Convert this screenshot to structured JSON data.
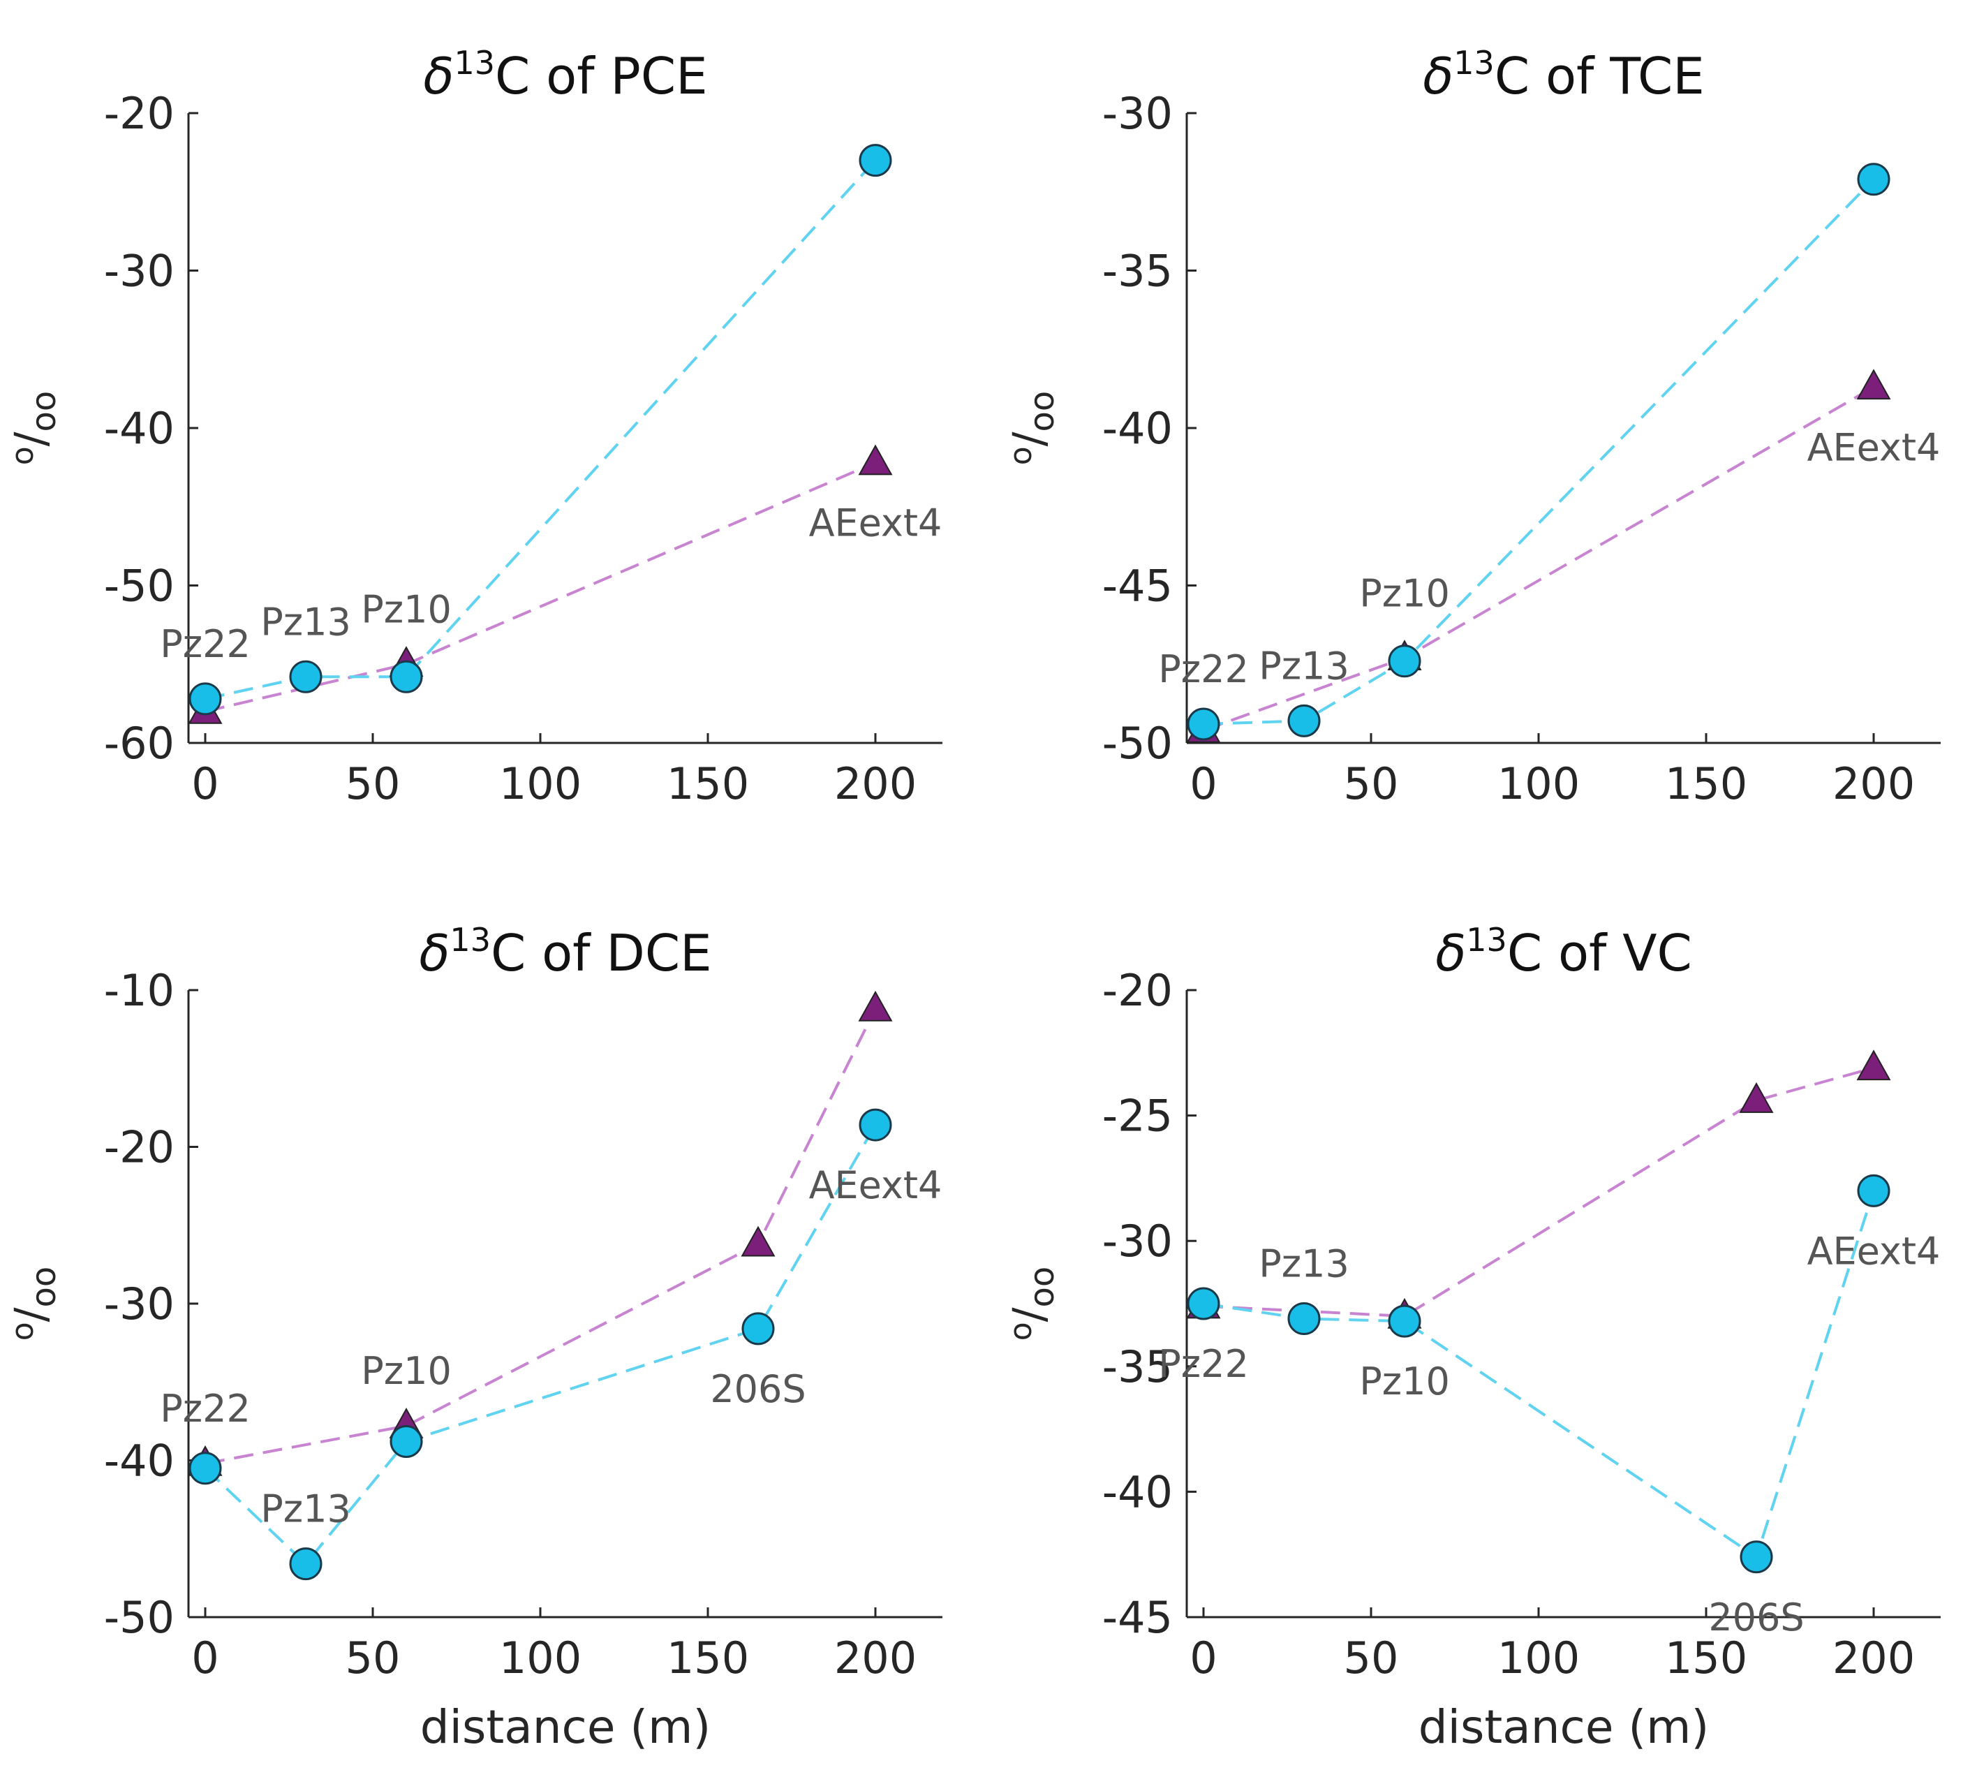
{
  "chart_data": [
    {
      "type": "line",
      "title_prefix": "δ",
      "title_sup": "13",
      "title_rest": "C of PCE",
      "ylabel_main": "o",
      "ylabel_sub": "oo",
      "xlabel": "",
      "xlim": [
        -5,
        220
      ],
      "ylim": [
        -60,
        -20
      ],
      "xticks": [
        0,
        50,
        100,
        150,
        200
      ],
      "yticks": [
        -60,
        -50,
        -40,
        -30,
        -20
      ],
      "series": [
        {
          "name": "triangle",
          "marker": "triangle",
          "color": "#7b1f7b",
          "line_color": "#c883d1",
          "x": [
            0,
            60,
            200
          ],
          "y": [
            -58,
            -55,
            -42.2
          ]
        },
        {
          "name": "circle",
          "marker": "circle",
          "color": "#18bde8",
          "line_color": "#5fd3f0",
          "x": [
            0,
            30,
            60,
            200
          ],
          "y": [
            -57.2,
            -55.8,
            -55.8,
            -23
          ]
        }
      ],
      "point_labels": [
        {
          "text": "Pz22",
          "x": 0,
          "y": -57.2,
          "pos": "above"
        },
        {
          "text": "Pz13",
          "x": 30,
          "y": -55.8,
          "pos": "above"
        },
        {
          "text": "Pz10",
          "x": 60,
          "y": -55.0,
          "pos": "above"
        },
        {
          "text": "AEext4",
          "x": 200,
          "y": -42.2,
          "pos": "below"
        }
      ]
    },
    {
      "type": "line",
      "title_prefix": "δ",
      "title_sup": "13",
      "title_rest": "C of TCE",
      "ylabel_main": "o",
      "ylabel_sub": "oo",
      "xlabel": "",
      "xlim": [
        -5,
        220
      ],
      "ylim": [
        -50,
        -30
      ],
      "xticks": [
        0,
        50,
        100,
        150,
        200
      ],
      "yticks": [
        -50,
        -45,
        -40,
        -35,
        -30
      ],
      "series": [
        {
          "name": "triangle",
          "marker": "triangle",
          "color": "#7b1f7b",
          "line_color": "#c883d1",
          "x": [
            0,
            60,
            200
          ],
          "y": [
            -49.6,
            -47.3,
            -38.7
          ]
        },
        {
          "name": "circle",
          "marker": "circle",
          "color": "#18bde8",
          "line_color": "#5fd3f0",
          "x": [
            0,
            30,
            60,
            200
          ],
          "y": [
            -49.4,
            -49.3,
            -47.4,
            -32.1
          ]
        }
      ],
      "point_labels": [
        {
          "text": "Pz22",
          "x": 0,
          "y": -49.4,
          "pos": "above"
        },
        {
          "text": "Pz13",
          "x": 30,
          "y": -49.3,
          "pos": "above"
        },
        {
          "text": "Pz10",
          "x": 60,
          "y": -47.0,
          "pos": "above"
        },
        {
          "text": "AEext4",
          "x": 200,
          "y": -38.7,
          "pos": "below"
        }
      ]
    },
    {
      "type": "line",
      "title_prefix": "δ",
      "title_sup": "13",
      "title_rest": "C of DCE",
      "ylabel_main": "o",
      "ylabel_sub": "oo",
      "xlabel": "distance (m)",
      "xlim": [
        -5,
        220
      ],
      "ylim": [
        -50,
        -10
      ],
      "xticks": [
        0,
        50,
        100,
        150,
        200
      ],
      "yticks": [
        -50,
        -40,
        -30,
        -20,
        -10
      ],
      "series": [
        {
          "name": "triangle",
          "marker": "triangle",
          "color": "#7b1f7b",
          "line_color": "#c883d1",
          "x": [
            0,
            60,
            165,
            200
          ],
          "y": [
            -40.2,
            -37.8,
            -26.2,
            -11.2
          ]
        },
        {
          "name": "circle",
          "marker": "circle",
          "color": "#18bde8",
          "line_color": "#5fd3f0",
          "x": [
            0,
            30,
            60,
            165,
            200
          ],
          "y": [
            -40.5,
            -46.6,
            -38.8,
            -31.6,
            -18.6
          ]
        }
      ],
      "point_labels": [
        {
          "text": "Pz22",
          "x": 0,
          "y": -40.2,
          "pos": "above"
        },
        {
          "text": "Pz13",
          "x": 30,
          "y": -46.6,
          "pos": "above"
        },
        {
          "text": "Pz10",
          "x": 60,
          "y": -37.8,
          "pos": "above"
        },
        {
          "text": "206S",
          "x": 165,
          "y": -31.6,
          "pos": "below"
        },
        {
          "text": "AEext4",
          "x": 200,
          "y": -18.6,
          "pos": "below"
        }
      ]
    },
    {
      "type": "line",
      "title_prefix": "δ",
      "title_sup": "13",
      "title_rest": "C of VC",
      "ylabel_main": "o",
      "ylabel_sub": "oo",
      "xlabel": "distance (m)",
      "xlim": [
        -5,
        220
      ],
      "ylim": [
        -45,
        -20
      ],
      "xticks": [
        0,
        50,
        100,
        150,
        200
      ],
      "yticks": [
        -45,
        -40,
        -35,
        -30,
        -25,
        -20
      ],
      "series": [
        {
          "name": "triangle",
          "marker": "triangle",
          "color": "#7b1f7b",
          "line_color": "#c883d1",
          "x": [
            0,
            60,
            165,
            200
          ],
          "y": [
            -32.6,
            -33.0,
            -24.4,
            -23.1
          ]
        },
        {
          "name": "circle",
          "marker": "circle",
          "color": "#18bde8",
          "line_color": "#5fd3f0",
          "x": [
            0,
            30,
            60,
            165,
            200
          ],
          "y": [
            -32.5,
            -33.1,
            -33.2,
            -42.6,
            -28.0
          ]
        }
      ],
      "point_labels": [
        {
          "text": "Pz22",
          "x": 0,
          "y": -32.5,
          "pos": "below"
        },
        {
          "text": "Pz13",
          "x": 30,
          "y": -33.1,
          "pos": "above"
        },
        {
          "text": "Pz10",
          "x": 60,
          "y": -33.2,
          "pos": "below"
        },
        {
          "text": "206S",
          "x": 165,
          "y": -42.6,
          "pos": "below"
        },
        {
          "text": "AEext4",
          "x": 200,
          "y": -28.0,
          "pos": "below"
        }
      ]
    }
  ]
}
